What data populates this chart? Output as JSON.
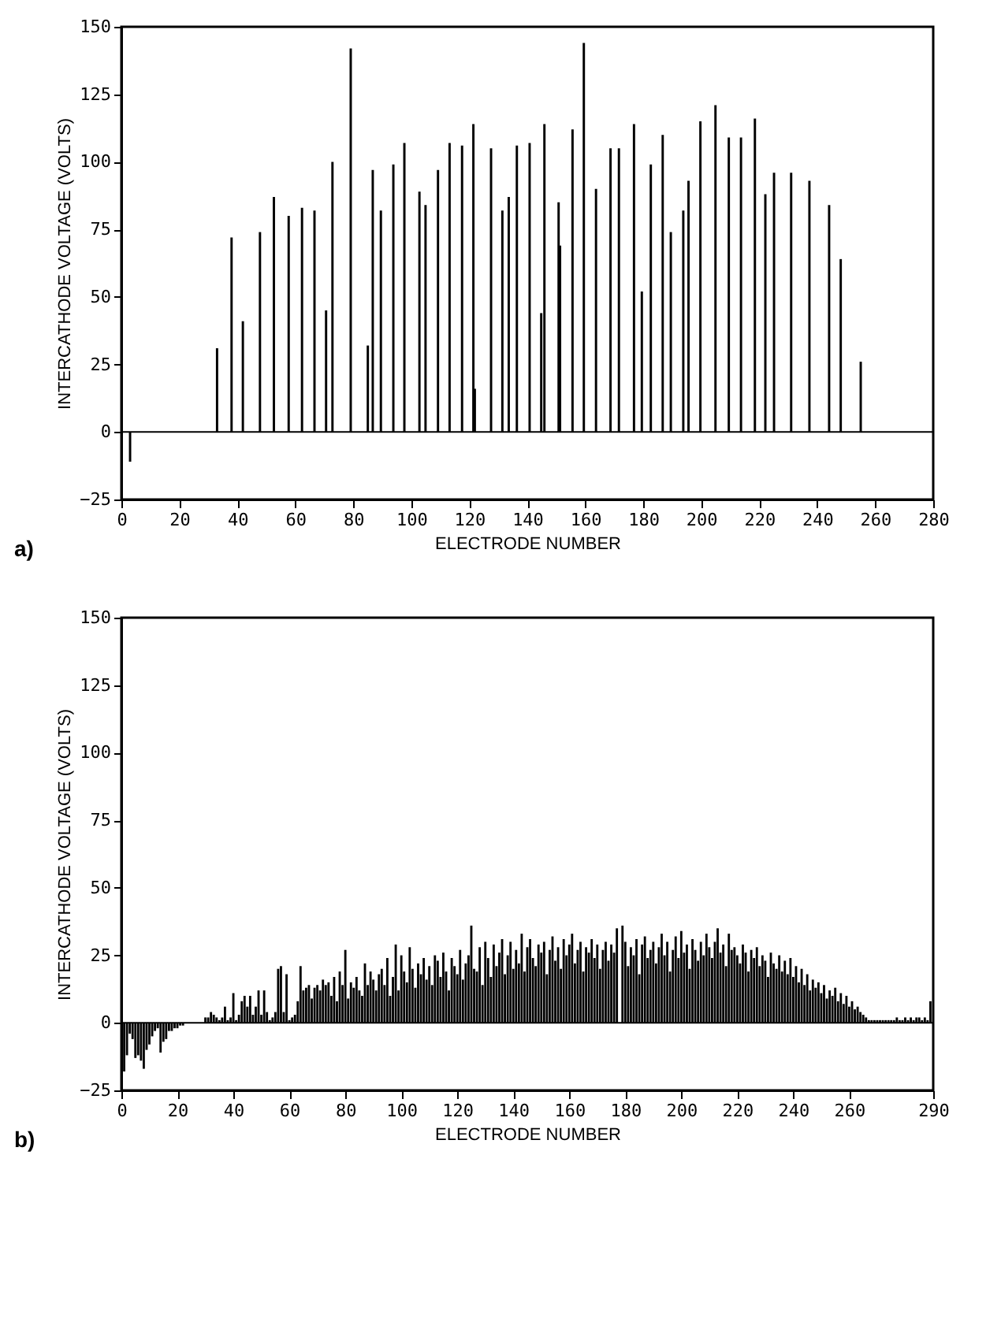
{
  "chart_data": [
    {
      "type": "bar",
      "color": "#000000",
      "xlabel": "ELECTRODE NUMBER",
      "ylabel": "INTERCATHODE VOLTAGE (VOLTS)",
      "annotations": [
        "a)"
      ],
      "grid": false,
      "xlim": [
        0,
        280
      ],
      "xticks": [
        0,
        20,
        40,
        60,
        80,
        100,
        120,
        140,
        160,
        180,
        200,
        220,
        240,
        260,
        280
      ],
      "ylim": [
        -25,
        150
      ],
      "yticks": [
        -25,
        0,
        25,
        50,
        75,
        100,
        125,
        150
      ],
      "ref_lines": [
        {
          "axis": "y",
          "value": 0
        }
      ],
      "x": [
        3,
        33.0,
        38.0,
        41.9,
        47.8,
        52.6,
        57.7,
        62.3,
        66.6,
        70.6,
        72.8,
        79.1,
        85.0,
        86.7,
        89.5,
        93.8,
        97.6,
        102.8,
        104.9,
        109.2,
        113.2,
        117.5,
        121.4,
        121.9,
        127.5,
        131.4,
        133.6,
        136.4,
        140.8,
        144.8,
        145.9,
        150.8,
        151.3,
        155.6,
        159.5,
        163.7,
        168.7,
        171.6,
        176.8,
        179.5,
        182.6,
        186.7,
        189.5,
        193.8,
        195.6,
        199.7,
        204.9,
        209.5,
        213.7,
        218.5,
        222.1,
        225.1,
        231.0,
        237.3,
        244.1,
        248.1,
        255.0
      ],
      "values": [
        -11,
        31,
        72,
        41,
        74,
        87,
        80,
        83,
        82,
        45,
        100,
        142,
        32,
        97,
        82,
        99,
        107,
        89,
        84,
        97,
        107,
        106,
        114,
        16,
        105,
        82,
        87,
        106,
        107,
        44,
        114,
        85,
        69,
        112,
        144,
        90,
        105,
        105,
        114,
        52,
        99,
        110,
        74,
        82,
        93,
        115,
        121,
        109,
        109,
        116,
        88,
        96,
        96,
        93,
        84,
        64,
        26
      ]
    },
    {
      "type": "bar",
      "color": "#000000",
      "xlabel": "ELECTRODE NUMBER",
      "ylabel": "INTERCATHODE VOLTAGE (VOLTS)",
      "annotations": [
        "b)"
      ],
      "grid": false,
      "xlim": [
        0,
        290
      ],
      "xticks": [
        0,
        20,
        40,
        60,
        80,
        100,
        120,
        140,
        160,
        180,
        200,
        220,
        240,
        260,
        290
      ],
      "ylim": [
        -25,
        150
      ],
      "yticks": [
        -25,
        0,
        25,
        50,
        75,
        100,
        125,
        150
      ],
      "ref_lines": [
        {
          "axis": "y",
          "value": 0
        }
      ],
      "x": [
        1,
        2,
        3,
        4,
        5,
        6,
        7,
        8,
        9,
        10,
        11,
        12,
        13,
        14,
        15,
        16,
        17,
        18,
        19,
        20,
        21,
        22,
        23,
        24,
        25,
        26,
        27,
        28,
        29,
        30,
        31,
        32,
        33,
        34,
        35,
        36,
        37,
        38,
        39,
        40,
        41,
        42,
        43,
        44,
        45,
        46,
        47,
        48,
        49,
        50,
        51,
        52,
        53,
        54,
        55,
        56,
        57,
        58,
        59,
        60,
        61,
        62,
        63,
        64,
        65,
        66,
        67,
        68,
        69,
        70,
        71,
        72,
        73,
        74,
        75,
        76,
        77,
        78,
        79,
        80,
        81,
        82,
        83,
        84,
        85,
        86,
        87,
        88,
        89,
        90,
        91,
        92,
        93,
        94,
        95,
        96,
        97,
        98,
        99,
        100,
        101,
        102,
        103,
        104,
        105,
        106,
        107,
        108,
        109,
        110,
        111,
        112,
        113,
        114,
        115,
        116,
        117,
        118,
        119,
        120,
        121,
        122,
        123,
        124,
        125,
        126,
        127,
        128,
        129,
        130,
        131,
        132,
        133,
        134,
        135,
        136,
        137,
        138,
        139,
        140,
        141,
        142,
        143,
        144,
        145,
        146,
        147,
        148,
        149,
        150,
        151,
        152,
        153,
        154,
        155,
        156,
        157,
        158,
        159,
        160,
        161,
        162,
        163,
        164,
        165,
        166,
        167,
        168,
        169,
        170,
        171,
        172,
        173,
        174,
        175,
        176,
        177,
        178,
        179,
        180,
        181,
        182,
        183,
        184,
        185,
        186,
        187,
        188,
        189,
        190,
        191,
        192,
        193,
        194,
        195,
        196,
        197,
        198,
        199,
        200,
        201,
        202,
        203,
        204,
        205,
        206,
        207,
        208,
        209,
        210,
        211,
        212,
        213,
        214,
        215,
        216,
        217,
        218,
        219,
        220,
        221,
        222,
        223,
        224,
        225,
        226,
        227,
        228,
        229,
        230,
        231,
        232,
        233,
        234,
        235,
        236,
        237,
        238,
        239,
        240,
        241,
        242,
        243,
        244,
        245,
        246,
        247,
        248,
        249,
        250,
        251,
        252,
        253,
        254,
        255,
        256,
        257,
        258,
        259,
        260,
        261,
        262,
        263,
        264,
        265,
        266,
        267,
        268,
        269,
        270,
        271,
        272,
        273,
        274,
        275,
        276,
        277,
        278,
        279,
        280,
        281,
        282,
        283,
        284,
        285,
        286,
        287,
        288,
        289
      ],
      "values": [
        -18,
        -12,
        -4,
        -6,
        -13,
        -12,
        -14,
        -17,
        -10,
        -8,
        -5,
        -3,
        -2,
        -11,
        -7,
        -6,
        -3,
        -3,
        -2,
        -2,
        -1,
        -1,
        0,
        0,
        0,
        0,
        0,
        0,
        0,
        2,
        2,
        4,
        3,
        2,
        1,
        2,
        6,
        1,
        2,
        11,
        1,
        3,
        8,
        10,
        6,
        10,
        3,
        6,
        12,
        3,
        12,
        4,
        1,
        2,
        4,
        20,
        21,
        4,
        18,
        1,
        2,
        3,
        8,
        21,
        12,
        13,
        14,
        9,
        13,
        14,
        12,
        16,
        14,
        15,
        10,
        17,
        8,
        19,
        14,
        27,
        9,
        15,
        13,
        17,
        12,
        10,
        22,
        14,
        19,
        16,
        12,
        18,
        20,
        14,
        24,
        10,
        17,
        29,
        12,
        25,
        19,
        15,
        28,
        20,
        13,
        22,
        18,
        24,
        16,
        21,
        14,
        25,
        23,
        17,
        26,
        19,
        12,
        24,
        21,
        18,
        27,
        16,
        22,
        25,
        36,
        20,
        19,
        28,
        14,
        30,
        24,
        17,
        29,
        21,
        26,
        31,
        18,
        25,
        30,
        20,
        27,
        22,
        33,
        19,
        28,
        31,
        24,
        21,
        29,
        26,
        30,
        18,
        27,
        32,
        23,
        28,
        20,
        31,
        25,
        29,
        33,
        22,
        27,
        30,
        19,
        28,
        26,
        31,
        24,
        29,
        20,
        27,
        30,
        23,
        29,
        26,
        35,
        0,
        36,
        30,
        21,
        28,
        25,
        31,
        18,
        29,
        32,
        24,
        27,
        30,
        22,
        28,
        33,
        25,
        30,
        19,
        27,
        32,
        24,
        34,
        26,
        29,
        20,
        31,
        27,
        23,
        30,
        25,
        33,
        28,
        24,
        30,
        35,
        26,
        29,
        21,
        33,
        27,
        28,
        25,
        22,
        29,
        26,
        19,
        27,
        24,
        28,
        21,
        25,
        23,
        17,
        26,
        22,
        20,
        25,
        19,
        23,
        18,
        24,
        17,
        21,
        15,
        20,
        14,
        18,
        12,
        16,
        13,
        15,
        11,
        14,
        9,
        12,
        10,
        13,
        8,
        11,
        7,
        10,
        6,
        8,
        5,
        6,
        4,
        3,
        2,
        1,
        1,
        1,
        1,
        1,
        1,
        1,
        1,
        1,
        1,
        2,
        1,
        1,
        2,
        1,
        2,
        1,
        2,
        2,
        1,
        2,
        1,
        8
      ]
    }
  ]
}
